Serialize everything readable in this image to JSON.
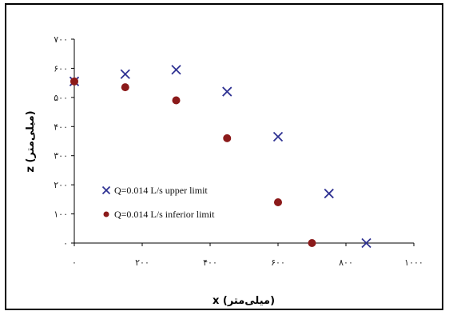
{
  "chart_data": {
    "type": "scatter",
    "title": "",
    "xlabel": "x (میلی‌متر)",
    "ylabel": "z (میلی‌متر)",
    "xlim": [
      0,
      1000
    ],
    "ylim": [
      0,
      700
    ],
    "x_ticks": [
      0,
      200,
      400,
      600,
      800,
      1000
    ],
    "y_ticks": [
      0,
      100,
      200,
      300,
      400,
      500,
      600,
      700
    ],
    "x_tick_labels": [
      "۰",
      "۲۰۰",
      "۴۰۰",
      "۶۰۰",
      "۸۰۰",
      "۱۰۰۰"
    ],
    "y_tick_labels": [
      "۰",
      "۱۰۰",
      "۲۰۰",
      "۳۰۰",
      "۴۰۰",
      "۵۰۰",
      "۶۰۰",
      "۷۰۰"
    ],
    "grid": "none",
    "legend": "left-middle",
    "series": [
      {
        "name": "Q=0.014 L/s upper limit",
        "marker": "x",
        "color": "#2e3192",
        "x": [
          0,
          150,
          300,
          450,
          600,
          750,
          860
        ],
        "y": [
          555,
          580,
          595,
          520,
          365,
          170,
          0
        ]
      },
      {
        "name": "Q=0.014 L/s inferior limit",
        "marker": "circle",
        "color": "#8b1a1a",
        "x": [
          0,
          150,
          300,
          450,
          600,
          700
        ],
        "y": [
          555,
          535,
          490,
          360,
          140,
          0
        ]
      }
    ]
  }
}
